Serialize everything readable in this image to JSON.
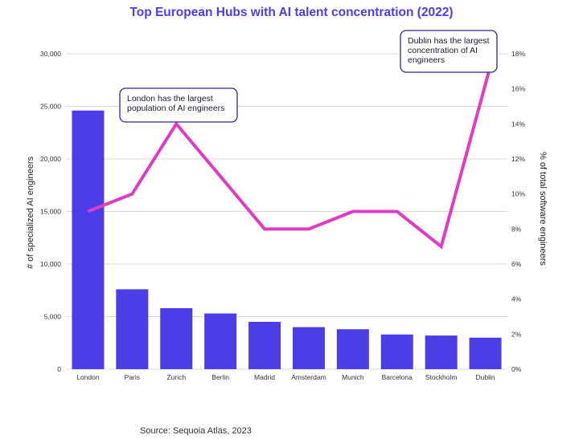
{
  "chart_data": {
    "type": "bar",
    "title": "Top European Hubs with AI talent concentration (2022)",
    "source": "Source: Sequoia Atlas, 2023",
    "categories": [
      "London",
      "Paris",
      "Zurich",
      "Berlin",
      "Madrid",
      "Amsterdam",
      "Munich",
      "Barcelona",
      "Stockholm",
      "Dublin"
    ],
    "series": [
      {
        "name": "# of specialized AI engineers",
        "type": "bar",
        "axis": "left",
        "values": [
          24600,
          7600,
          5800,
          5300,
          4500,
          4000,
          3800,
          3300,
          3200,
          3000
        ]
      },
      {
        "name": "% of total software engineers",
        "type": "line",
        "axis": "right",
        "values": [
          9,
          10,
          14,
          11,
          8,
          8,
          9,
          9,
          7,
          17.8
        ]
      }
    ],
    "ylabel": "# of specialized AI engineers",
    "ylim": [
      0,
      30000
    ],
    "yticks": [
      0,
      5000,
      10000,
      15000,
      20000,
      25000,
      30000
    ],
    "ytick_labels": [
      "0",
      "5,000",
      "10,000",
      "15,000",
      "20,000",
      "25,000",
      "30,000"
    ],
    "y2label": "% of total software engineers",
    "y2lim": [
      0,
      18
    ],
    "y2ticks": [
      0,
      2,
      4,
      6,
      8,
      10,
      12,
      14,
      16,
      18
    ],
    "y2tick_labels": [
      "0%",
      "2%",
      "4%",
      "6%",
      "8%",
      "10%",
      "12%",
      "14%",
      "16%",
      "18%"
    ],
    "grid": true,
    "annotations": [
      {
        "lines": [
          "London has the largest",
          "population of AI engineers"
        ]
      },
      {
        "lines": [
          "Dublin has the largest",
          "concentration of AI",
          "engineers"
        ]
      }
    ],
    "colors": {
      "bar": "#4b3ee6",
      "line": "#e03cc3",
      "title": "#4b3ee6",
      "grid": "#d9d9d9",
      "annotation_border": "#2d2a8a"
    }
  }
}
